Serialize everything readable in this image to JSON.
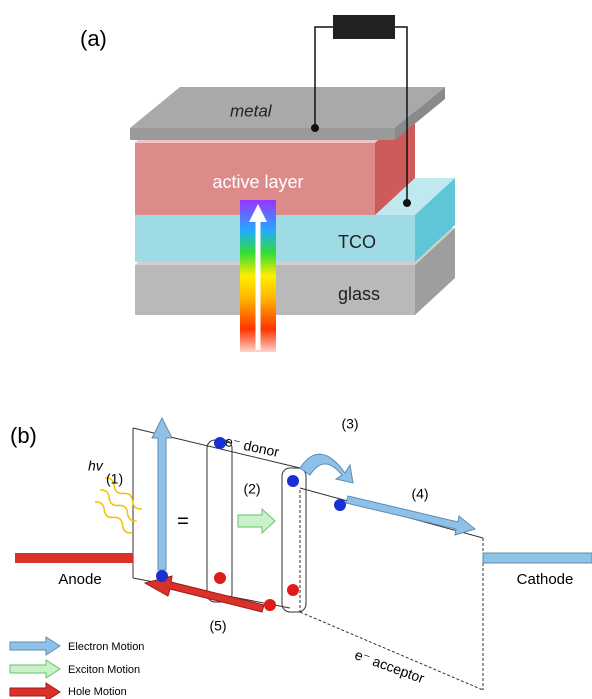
{
  "panel_a": {
    "label": "(a)",
    "layers": {
      "metal": "metal",
      "active": "active layer",
      "tco": "TCO",
      "glass": "glass"
    }
  },
  "panel_b": {
    "label": "(b)",
    "donor": "e⁻ donor",
    "acceptor": "e⁻ acceptor",
    "photon": "hv",
    "equals": "=",
    "steps": [
      "(1)",
      "(2)",
      "(3)",
      "(4)",
      "(5)"
    ],
    "anode": "Anode",
    "cathode": "Cathode",
    "legend": [
      "Electron Motion",
      "Exciton Motion",
      "Hole Motion"
    ]
  }
}
